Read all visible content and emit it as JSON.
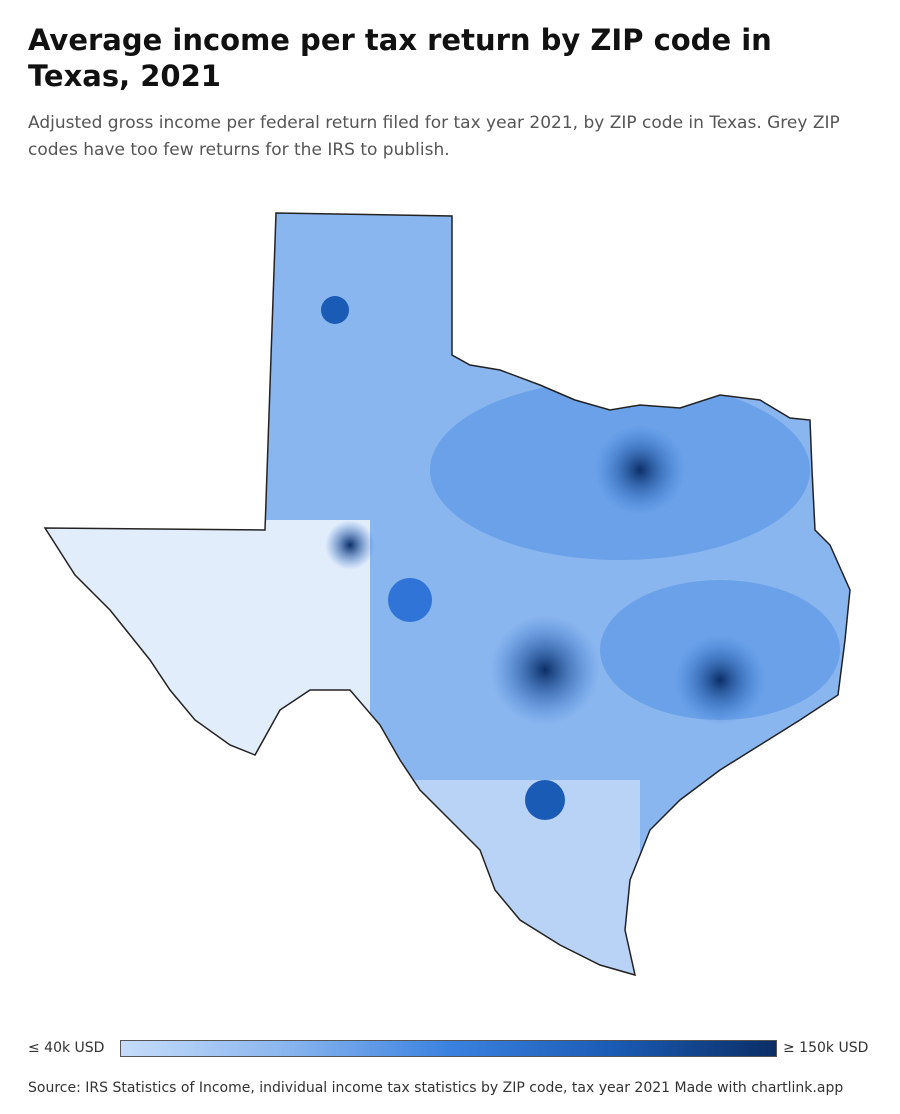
{
  "header": {
    "title": "Average income per tax return by ZIP code in Texas, 2021",
    "subtitle": "Adjusted gross income per federal return filed for tax year 2021, by ZIP code in Texas. Grey ZIP codes have too few returns for the IRS to publish."
  },
  "legend": {
    "min_label": "≤ 40k USD",
    "max_label": "≥ 150k USD"
  },
  "footer": {
    "source": "Source: IRS Statistics of Income, individual income tax statistics by ZIP code, tax year 2021 Made with chartlink.app"
  }
}
